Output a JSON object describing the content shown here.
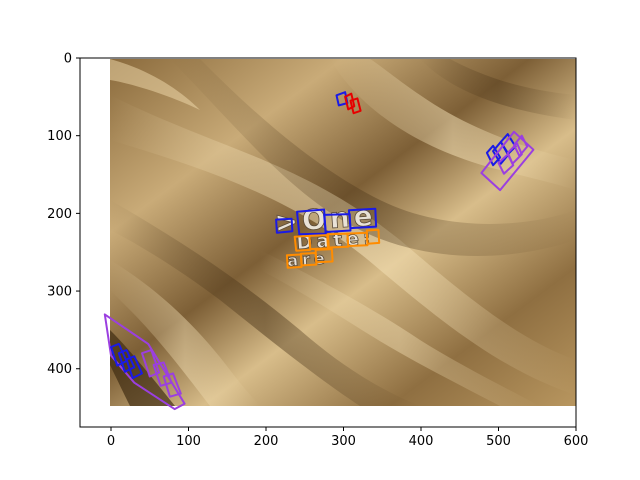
{
  "figure": {
    "kind": "matplotlib image plot with annotated text regions",
    "image_subject": "golden satin fabric",
    "frame_color": "#000000",
    "background": "#ffffff"
  },
  "axes": {
    "xlim": [
      -40,
      600
    ],
    "ylim": [
      475,
      0
    ],
    "image_extent_x": [
      0,
      600
    ],
    "image_extent_y": [
      0,
      450
    ],
    "x_ticks": [
      {
        "value": 0,
        "label": "0"
      },
      {
        "value": 100,
        "label": "100"
      },
      {
        "value": 200,
        "label": "200"
      },
      {
        "value": 300,
        "label": "300"
      },
      {
        "value": 400,
        "label": "400"
      },
      {
        "value": 500,
        "label": "500"
      },
      {
        "value": 600,
        "label": "600"
      }
    ],
    "y_ticks": [
      {
        "value": 0,
        "label": "0"
      },
      {
        "value": 100,
        "label": "100"
      },
      {
        "value": 200,
        "label": "200"
      },
      {
        "value": 300,
        "label": "300"
      },
      {
        "value": 400,
        "label": "400"
      }
    ]
  },
  "annotations": {
    "colors": {
      "blue": "#1a1ae6",
      "orange": "#ff8c00",
      "purple": "#9b3fe0",
      "red": "#e60000"
    },
    "words_on_image": [
      {
        "text": ">One",
        "color": "blue"
      },
      {
        "text": "Date:",
        "color": "orange"
      },
      {
        "text": "are",
        "color": "orange"
      }
    ],
    "regions": [
      {
        "name": "box-one-arrow",
        "color": "blue",
        "points": [
          [
            213,
            208
          ],
          [
            233,
            207
          ],
          [
            234,
            223
          ],
          [
            214,
            225
          ]
        ]
      },
      {
        "name": "box-one-O",
        "color": "blue",
        "points": [
          [
            240,
            198
          ],
          [
            275,
            195
          ],
          [
            277,
            226
          ],
          [
            243,
            227
          ]
        ]
      },
      {
        "name": "box-one-n",
        "color": "blue",
        "points": [
          [
            275,
            202
          ],
          [
            308,
            201
          ],
          [
            309,
            222
          ],
          [
            277,
            224
          ]
        ]
      },
      {
        "name": "box-one-e",
        "color": "blue",
        "points": [
          [
            307,
            196
          ],
          [
            341,
            194
          ],
          [
            342,
            217
          ],
          [
            309,
            219
          ]
        ]
      },
      {
        "name": "box-date-D",
        "color": "orange",
        "points": [
          [
            237,
            230
          ],
          [
            256,
            229
          ],
          [
            257,
            247
          ],
          [
            239,
            248
          ]
        ]
      },
      {
        "name": "box-date-a",
        "color": "orange",
        "points": [
          [
            256,
            229
          ],
          [
            279,
            228
          ],
          [
            280,
            245
          ],
          [
            257,
            246
          ]
        ]
      },
      {
        "name": "box-date-t",
        "color": "orange",
        "points": [
          [
            280,
            227
          ],
          [
            305,
            226
          ],
          [
            306,
            243
          ],
          [
            281,
            244
          ]
        ]
      },
      {
        "name": "box-date-e",
        "color": "orange",
        "points": [
          [
            305,
            226
          ],
          [
            330,
            225
          ],
          [
            331,
            241
          ],
          [
            306,
            242
          ]
        ]
      },
      {
        "name": "box-date-colon",
        "color": "orange",
        "points": [
          [
            330,
            222
          ],
          [
            345,
            221
          ],
          [
            346,
            238
          ],
          [
            331,
            239
          ]
        ]
      },
      {
        "name": "box-are-a",
        "color": "orange",
        "points": [
          [
            227,
            254
          ],
          [
            245,
            253
          ],
          [
            246,
            269
          ],
          [
            228,
            270
          ]
        ]
      },
      {
        "name": "box-are-r",
        "color": "orange",
        "points": [
          [
            245,
            252
          ],
          [
            264,
            251
          ],
          [
            265,
            266
          ],
          [
            246,
            267
          ]
        ]
      },
      {
        "name": "box-are-e",
        "color": "orange",
        "points": [
          [
            264,
            247
          ],
          [
            285,
            246
          ],
          [
            286,
            262
          ],
          [
            265,
            263
          ]
        ]
      },
      {
        "name": "box-top-1",
        "color": "blue",
        "points": [
          [
            291,
            48
          ],
          [
            302,
            44
          ],
          [
            305,
            58
          ],
          [
            294,
            61
          ]
        ]
      },
      {
        "name": "box-top-2",
        "color": "red",
        "points": [
          [
            302,
            50
          ],
          [
            310,
            46
          ],
          [
            314,
            62
          ],
          [
            306,
            66
          ]
        ]
      },
      {
        "name": "box-top-3",
        "color": "red",
        "points": [
          [
            309,
            55
          ],
          [
            318,
            52
          ],
          [
            322,
            68
          ],
          [
            313,
            71
          ]
        ]
      },
      {
        "name": "box-right-1",
        "color": "blue",
        "points": [
          [
            485,
            122
          ],
          [
            493,
            113
          ],
          [
            502,
            128
          ],
          [
            493,
            138
          ]
        ]
      },
      {
        "name": "box-right-2",
        "color": "blue",
        "points": [
          [
            493,
            120
          ],
          [
            503,
            108
          ],
          [
            513,
            124
          ],
          [
            503,
            136
          ]
        ]
      },
      {
        "name": "box-right-3",
        "color": "blue",
        "points": [
          [
            503,
            108
          ],
          [
            512,
            98
          ],
          [
            522,
            114
          ],
          [
            512,
            124
          ]
        ]
      },
      {
        "name": "box-right-4",
        "color": "purple",
        "points": [
          [
            500,
            135
          ],
          [
            512,
            124
          ],
          [
            519,
            138
          ],
          [
            507,
            149
          ]
        ]
      },
      {
        "name": "box-right-5",
        "color": "purple",
        "points": [
          [
            512,
            122
          ],
          [
            524,
            110
          ],
          [
            530,
            124
          ],
          [
            518,
            136
          ]
        ]
      },
      {
        "name": "box-right-6",
        "color": "purple",
        "points": [
          [
            520,
            112
          ],
          [
            530,
            100
          ],
          [
            537,
            114
          ],
          [
            527,
            126
          ]
        ]
      },
      {
        "name": "box-right-outer",
        "color": "purple",
        "points": [
          [
            478,
            148
          ],
          [
            520,
            95
          ],
          [
            545,
            118
          ],
          [
            502,
            170
          ]
        ]
      },
      {
        "name": "box-left-outer",
        "color": "purple",
        "points": [
          [
            -8,
            330
          ],
          [
            48,
            368
          ],
          [
            95,
            445
          ],
          [
            82,
            452
          ],
          [
            30,
            418
          ],
          [
            0,
            383
          ]
        ]
      },
      {
        "name": "box-left-1",
        "color": "blue",
        "points": [
          [
            0,
            372
          ],
          [
            10,
            368
          ],
          [
            20,
            390
          ],
          [
            8,
            396
          ]
        ]
      },
      {
        "name": "box-left-2",
        "color": "blue",
        "points": [
          [
            10,
            380
          ],
          [
            20,
            376
          ],
          [
            30,
            398
          ],
          [
            18,
            404
          ]
        ]
      },
      {
        "name": "box-left-3",
        "color": "blue",
        "points": [
          [
            20,
            388
          ],
          [
            30,
            384
          ],
          [
            40,
            406
          ],
          [
            28,
            412
          ]
        ]
      },
      {
        "name": "box-left-4",
        "color": "purple",
        "points": [
          [
            40,
            380
          ],
          [
            52,
            376
          ],
          [
            62,
            405
          ],
          [
            50,
            410
          ]
        ]
      },
      {
        "name": "box-left-5",
        "color": "purple",
        "points": [
          [
            55,
            395
          ],
          [
            68,
            392
          ],
          [
            78,
            418
          ],
          [
            64,
            422
          ]
        ]
      },
      {
        "name": "box-left-6",
        "color": "purple",
        "points": [
          [
            68,
            410
          ],
          [
            80,
            406
          ],
          [
            90,
            432
          ],
          [
            76,
            436
          ]
        ]
      }
    ]
  }
}
